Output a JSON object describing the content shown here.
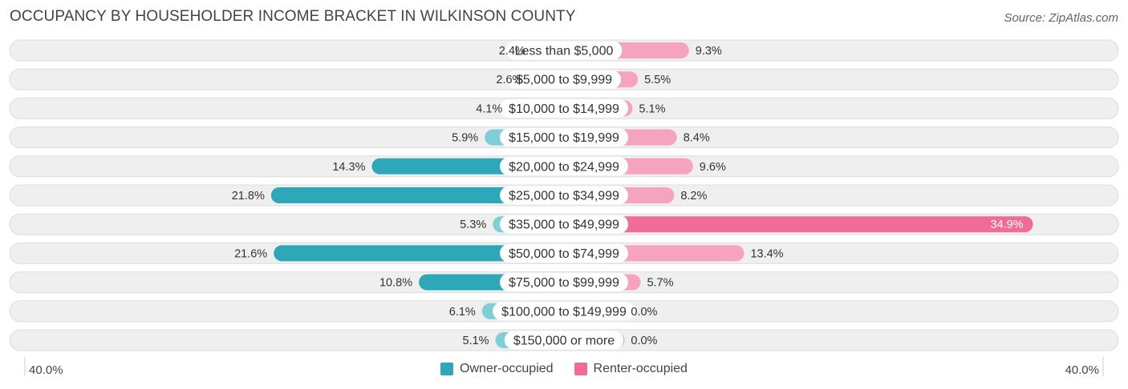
{
  "header": {
    "title": "OCCUPANCY BY HOUSEHOLDER INCOME BRACKET IN WILKINSON COUNTY",
    "source": "Source: ZipAtlas.com"
  },
  "colors": {
    "owner": "#2ea8b8",
    "owner_light": "#7fcfd8",
    "renter": "#f06b98",
    "renter_light": "#f5a3bf",
    "row_bg": "#efefef",
    "row_border": "#dddddd"
  },
  "legend": {
    "owner_label": "Owner-occupied",
    "renter_label": "Renter-occupied"
  },
  "axis": {
    "left_label": "40.0%",
    "right_label": "40.0%"
  },
  "chart_data": {
    "type": "bar",
    "orientation": "horizontal-diverging",
    "title": "OCCUPANCY BY HOUSEHOLDER INCOME BRACKET IN WILKINSON COUNTY",
    "categories": [
      "Less than $5,000",
      "$5,000 to $9,999",
      "$10,000 to $14,999",
      "$15,000 to $19,999",
      "$20,000 to $24,999",
      "$25,000 to $34,999",
      "$35,000 to $49,999",
      "$50,000 to $74,999",
      "$75,000 to $99,999",
      "$100,000 to $149,999",
      "$150,000 or more"
    ],
    "series": [
      {
        "name": "Owner-occupied",
        "values": [
          2.4,
          2.6,
          4.1,
          5.9,
          14.3,
          21.8,
          5.3,
          21.6,
          10.8,
          6.1,
          5.1
        ],
        "labels": [
          "2.4%",
          "2.6%",
          "4.1%",
          "5.9%",
          "14.3%",
          "21.8%",
          "5.3%",
          "21.6%",
          "10.8%",
          "6.1%",
          "5.1%"
        ]
      },
      {
        "name": "Renter-occupied",
        "values": [
          9.3,
          5.5,
          5.1,
          8.4,
          9.6,
          8.2,
          34.9,
          13.4,
          5.7,
          0.0,
          0.0
        ],
        "labels": [
          "9.3%",
          "5.5%",
          "5.1%",
          "8.4%",
          "9.6%",
          "8.2%",
          "34.9%",
          "13.4%",
          "5.7%",
          "0.0%",
          "0.0%"
        ]
      }
    ],
    "xlim": [
      -40,
      40
    ],
    "unit": "%"
  }
}
